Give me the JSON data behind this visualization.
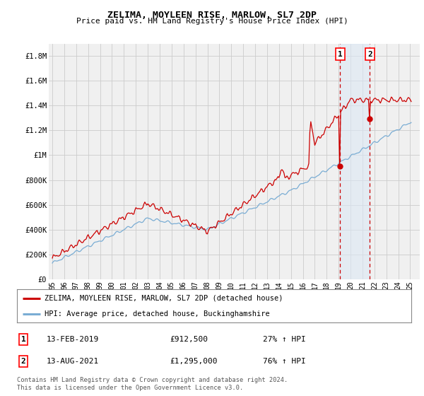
{
  "title": "ZELIMA, MOYLEEN RISE, MARLOW, SL7 2DP",
  "subtitle": "Price paid vs. HM Land Registry's House Price Index (HPI)",
  "ylabel_ticks": [
    "£0",
    "£200K",
    "£400K",
    "£600K",
    "£800K",
    "£1M",
    "£1.2M",
    "£1.4M",
    "£1.6M",
    "£1.8M"
  ],
  "ytick_values": [
    0,
    200000,
    400000,
    600000,
    800000,
    1000000,
    1200000,
    1400000,
    1600000,
    1800000
  ],
  "ylim": [
    0,
    1900000
  ],
  "xlim_start": 1995,
  "xlim_end": 2025.5,
  "xtick_years": [
    1995,
    1996,
    1997,
    1998,
    1999,
    2000,
    2001,
    2002,
    2003,
    2004,
    2005,
    2006,
    2007,
    2008,
    2009,
    2010,
    2011,
    2012,
    2013,
    2014,
    2015,
    2016,
    2017,
    2018,
    2019,
    2020,
    2021,
    2022,
    2023,
    2024,
    2025
  ],
  "xtick_labels": [
    "95",
    "96",
    "97",
    "98",
    "99",
    "00",
    "01",
    "02",
    "03",
    "04",
    "05",
    "06",
    "07",
    "08",
    "09",
    "10",
    "11",
    "12",
    "13",
    "14",
    "15",
    "16",
    "17",
    "18",
    "19",
    "20",
    "21",
    "22",
    "23",
    "24",
    "25"
  ],
  "red_line_color": "#cc0000",
  "blue_line_color": "#7aadd4",
  "marker_color": "#cc0000",
  "grid_color": "#cccccc",
  "bg_color": "#ffffff",
  "plot_bg_color": "#f0f0f0",
  "shade_color": "#dce8f5",
  "shade_alpha": 0.6,
  "dashed_line_color": "#cc0000",
  "marker1_x": 2019.12,
  "marker1_y": 912500,
  "marker2_x": 2021.62,
  "marker2_y": 1295000,
  "sale1_date": "13-FEB-2019",
  "sale1_price": "£912,500",
  "sale1_hpi": "27% ↑ HPI",
  "sale2_date": "13-AUG-2021",
  "sale2_price": "£1,295,000",
  "sale2_hpi": "76% ↑ HPI",
  "legend1": "ZELIMA, MOYLEEN RISE, MARLOW, SL7 2DP (detached house)",
  "legend2": "HPI: Average price, detached house, Buckinghamshire",
  "footnote": "Contains HM Land Registry data © Crown copyright and database right 2024.\nThis data is licensed under the Open Government Licence v3.0."
}
